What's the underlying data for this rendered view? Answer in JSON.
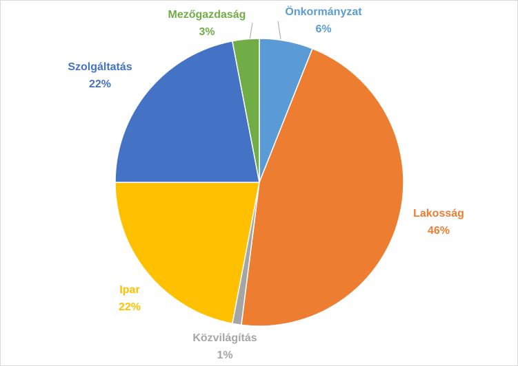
{
  "chart_data": {
    "type": "pie",
    "categories": [
      "Önkormányzat",
      "Lakosság",
      "Közvilágítás",
      "Ipar",
      "Szolgáltatás",
      "Mezőgazdaság"
    ],
    "values": [
      6,
      46,
      1,
      22,
      22,
      3
    ],
    "value_labels": [
      "6%",
      "46%",
      "1%",
      "22%",
      "22%",
      "3%"
    ],
    "colors": [
      "#5b9bd5",
      "#ed7d31",
      "#a5a5a5",
      "#ffc000",
      "#4472c4",
      "#70ad47"
    ]
  }
}
